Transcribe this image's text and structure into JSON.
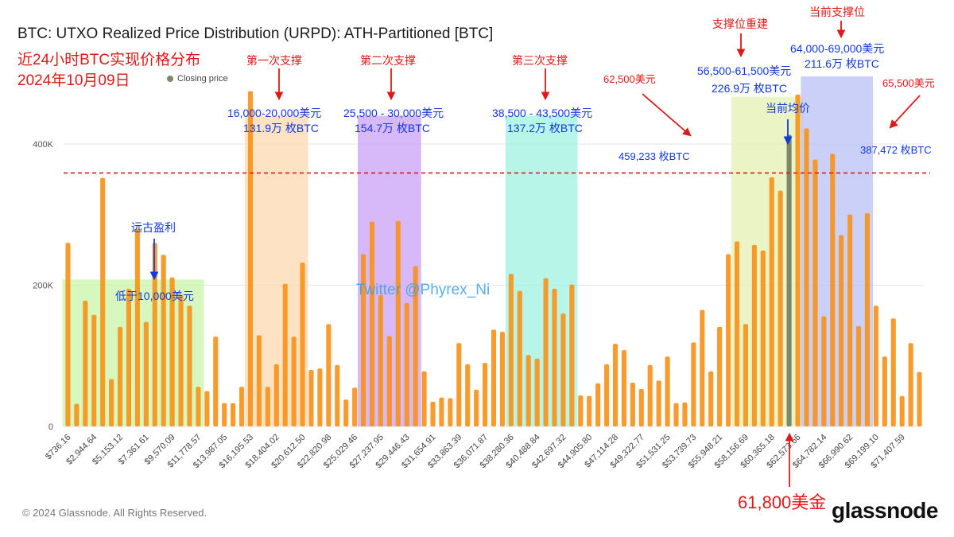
{
  "header": {
    "title": "BTC: UTXO Realized Price Distribution (URPD): ATH-Partitioned [BTC]",
    "cn_line1": "近24小时BTC实现价格分布",
    "cn_line2": "2024年10月09日",
    "legend_closing": "Closing price"
  },
  "colors": {
    "bar": "#f7931a",
    "closing_bar": "#7c8a6a",
    "red_annotation": "#e01818",
    "blue_annotation": "#1238e0",
    "zone_green": "#c8f5a8",
    "zone_orange": "#fcd8b0",
    "zone_purple": "#c9a0f5",
    "zone_cyan": "#9ff2e2",
    "zone_yellowgreen": "#e3f0b0",
    "zone_blue": "#b8c0f5"
  },
  "chart_data": {
    "type": "bar",
    "title": "BTC: UTXO Realized Price Distribution (URPD): ATH-Partitioned [BTC]",
    "ylim": [
      0,
      480000
    ],
    "yticks": [
      0,
      200000,
      400000
    ],
    "ytick_labels": [
      "0",
      "200K",
      "400K"
    ],
    "grid": true,
    "xtick_labels": [
      "$736.16",
      "$2,944.64",
      "$5,153.12",
      "$7,361.61",
      "$9,570.09",
      "$11,778.57",
      "$13,987.05",
      "$16,195.53",
      "$18,404.02",
      "$20,612.50",
      "$22,820.98",
      "$25,029.46",
      "$27,237.95",
      "$29,446.43",
      "$31,654.91",
      "$33,863.39",
      "$36,071.87",
      "$38,280.36",
      "$40,488.84",
      "$42,697.32",
      "$44,905.80",
      "$47,114.28",
      "$49,322.77",
      "$51,531.25",
      "$53,739.73",
      "$55,948.21",
      "$58,156.69",
      "$60,365.18",
      "$62,573.66",
      "$64,782.14",
      "$66,990.62",
      "$69,199.10",
      "$71,407.59"
    ],
    "values": [
      260000,
      32000,
      178000,
      158000,
      352000,
      67000,
      141000,
      195000,
      280000,
      148000,
      260000,
      243000,
      211000,
      186000,
      171000,
      56000,
      50000,
      127000,
      33000,
      33000,
      56000,
      475000,
      129000,
      56000,
      88000,
      202000,
      127000,
      232000,
      80000,
      82000,
      145000,
      87000,
      38000,
      55000,
      244000,
      290000,
      186000,
      128000,
      291000,
      175000,
      227000,
      78000,
      35000,
      41000,
      40000,
      118000,
      88000,
      52000,
      90000,
      137000,
      134000,
      216000,
      192000,
      101000,
      96000,
      210000,
      195000,
      160000,
      201000,
      44000,
      43000,
      61000,
      88000,
      117000,
      108000,
      62000,
      53000,
      87000,
      65000,
      99000,
      33000,
      34000,
      119000,
      165000,
      78000,
      141000,
      244000,
      262000,
      145000,
      257000,
      249000,
      353000,
      334000,
      413000,
      470000,
      422000,
      378000,
      156000,
      386000,
      271000,
      300000,
      142000,
      302000,
      171000,
      99000,
      153000,
      43000,
      118000,
      77000
    ],
    "closing_price_index": 83,
    "reference_line_value": 359000,
    "shaded_ranges": [
      {
        "from_index": 0,
        "to_index": 15,
        "top": 208000
      },
      {
        "from_index": 21,
        "to_index": 27,
        "top": 440000
      },
      {
        "from_index": 34,
        "to_index": 40,
        "top": 440000
      },
      {
        "from_index": 51,
        "to_index": 58,
        "top": 440000
      },
      {
        "from_index": 77,
        "to_index": 84,
        "top": 467000
      },
      {
        "from_index": 85,
        "to_index": 92,
        "top": 515000
      }
    ]
  },
  "annotations": {
    "first_support": "第一次支撑",
    "first_range": "16,000-20,000美元",
    "first_amount": "131.9万 枚BTC",
    "second_support": "第二次支撑",
    "second_range": "25,500 - 30,000美元",
    "second_amount": "154.7万 枚BTC",
    "third_support": "第三次支撑",
    "third_range": "38,500 - 43,500美元",
    "third_amount": "137.2万 枚BTC",
    "rebuild_support": "支撑位重建",
    "rebuild_range": "56,500-61,500美元",
    "rebuild_amount": "226.9万 枚BTC",
    "current_support": "当前支撑位",
    "current_range": "64,000-69,000美元",
    "current_amount": "211.6万 枚BTC",
    "left_price": "62,500美元",
    "left_amount": "459,233 枚BTC",
    "right_price": "65,500美元",
    "right_amount": "387,472 枚BTC",
    "current_avg": "当前均价",
    "ancient_profit": "远古盈利",
    "below_10k": "低于10,000美元",
    "closing_price_value": "61,800美金",
    "watermark": "Twitter @Phyrex_Ni"
  },
  "footer": {
    "copyright": "© 2024 Glassnode. All Rights Reserved.",
    "brand": "glassnode"
  }
}
